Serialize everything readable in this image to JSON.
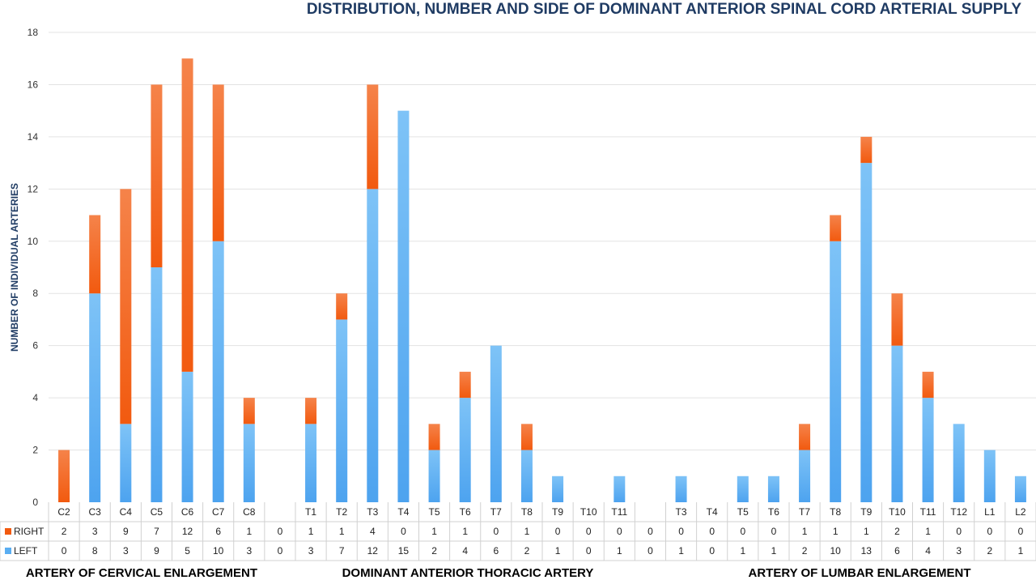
{
  "chart_data": {
    "type": "bar",
    "stacked": true,
    "title": "DISTRIBUTION, NUMBER AND SIDE OF DOMINANT ANTERIOR SPINAL CORD ARTERIAL SUPPLY",
    "ylabel": "NUMBER OF INDIVIDUAL ARTERIES",
    "ylim": [
      0,
      18
    ],
    "yticks": [
      0,
      2,
      4,
      6,
      8,
      10,
      12,
      14,
      16,
      18
    ],
    "grid": true,
    "legend_position": "table-left",
    "colors": {
      "right": "#f25a0f",
      "left": "#5aaef2"
    },
    "categories": [
      "C2",
      "C3",
      "C4",
      "C5",
      "C6",
      "C7",
      "C8",
      "",
      "T1",
      "T2",
      "T3",
      "T4",
      "T5",
      "T6",
      "T7",
      "T8",
      "T9",
      "T10",
      "T11",
      "",
      "T3",
      "T4",
      "T5",
      "T6",
      "T7",
      "T8",
      "T9",
      "T10",
      "T11",
      "T12",
      "L1",
      "L2"
    ],
    "series": [
      {
        "name": "RIGHT",
        "values": [
          "2",
          "3",
          "9",
          "7",
          "12",
          "6",
          "1",
          "0",
          "1",
          "1",
          "4",
          "0",
          "1",
          "1",
          "0",
          "1",
          "0",
          "0",
          "0",
          "0",
          "0",
          "0",
          "0",
          "0",
          "1",
          "1",
          "1",
          "2",
          "1",
          "0",
          "0",
          "0"
        ]
      },
      {
        "name": "LEFT",
        "values": [
          "0",
          "8",
          "3",
          "9",
          "5",
          "10",
          "3",
          "0",
          "3",
          "7",
          "12",
          "15",
          "2",
          "4",
          "6",
          "2",
          "1",
          "0",
          "1",
          "0",
          "1",
          "0",
          "1",
          "1",
          "2",
          "10",
          "13",
          "6",
          "4",
          "3",
          "2",
          "1"
        ]
      }
    ],
    "groups": [
      {
        "label": "ARTERY OF CERVICAL ENLARGEMENT"
      },
      {
        "label": "DOMINANT ANTERIOR THORACIC ARTERY"
      },
      {
        "label": "ARTERY OF LUMBAR ENLARGEMENT"
      }
    ]
  }
}
